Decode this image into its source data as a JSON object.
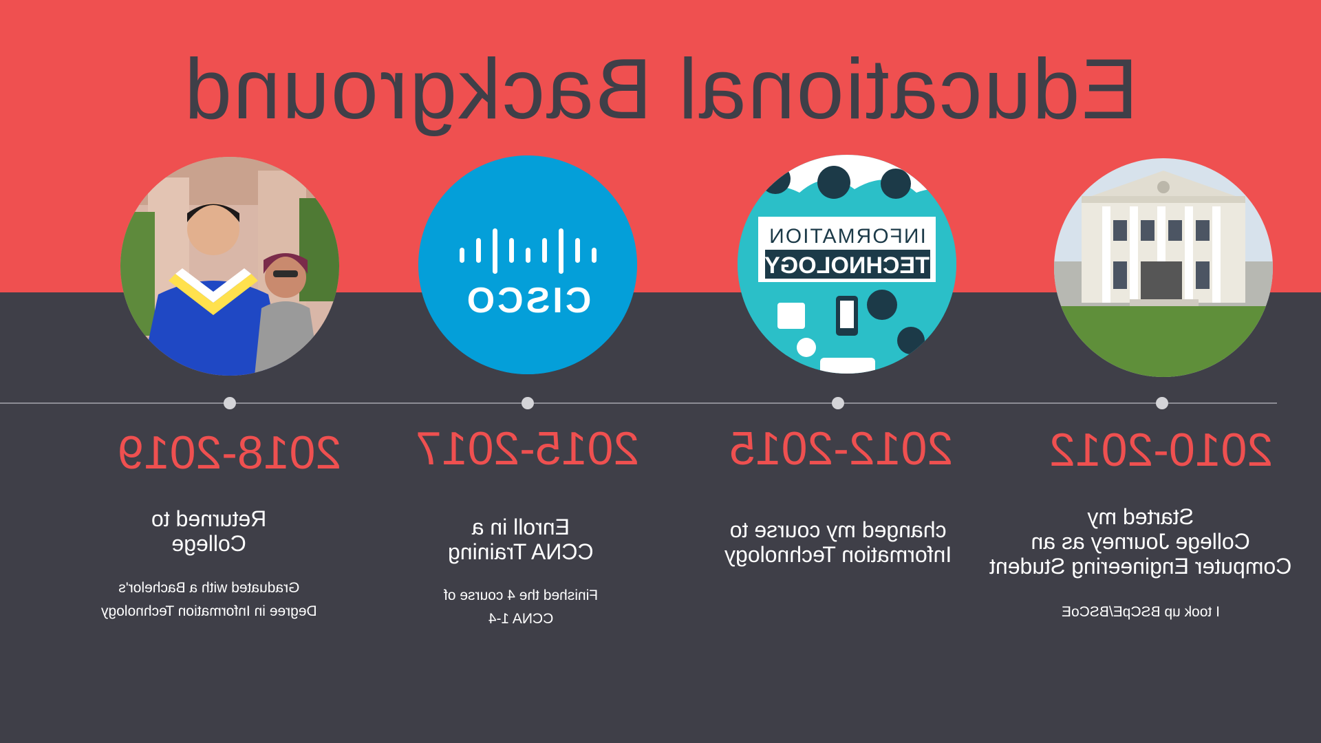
{
  "title": "Educational Background",
  "colors": {
    "accent": "#ef5050",
    "dark": "#3f3f48",
    "text": "#ffffff",
    "cisco_blue": "#049fd9",
    "it_teal": "#2bbfc8"
  },
  "timeline": [
    {
      "year": "2018-2019",
      "heading": "Returned to\nCollege",
      "description": "Graduated with a Bachelor's\nDegree in Information Technology",
      "image": "graduation-photo"
    },
    {
      "year": "2015-2017",
      "heading": "Enroll in a\nCCNA Training",
      "description": "Finished the 4 course of\nCCNA 1-4",
      "image": "cisco-logo",
      "logo_text": "CISCO"
    },
    {
      "year": "2012-2015",
      "heading": "changed my course to\nInformation Technology",
      "description": "",
      "image": "information-technology-graphic",
      "logo_text_1": "INFORMATION",
      "logo_text_2": "TECHNOLOGY"
    },
    {
      "year": "2010-2012",
      "heading": "Started my\nCollege Journey as an\nComputer Engineering Student",
      "description": "I took up BSCpE/BSCoE",
      "image": "university-building-photo"
    }
  ]
}
